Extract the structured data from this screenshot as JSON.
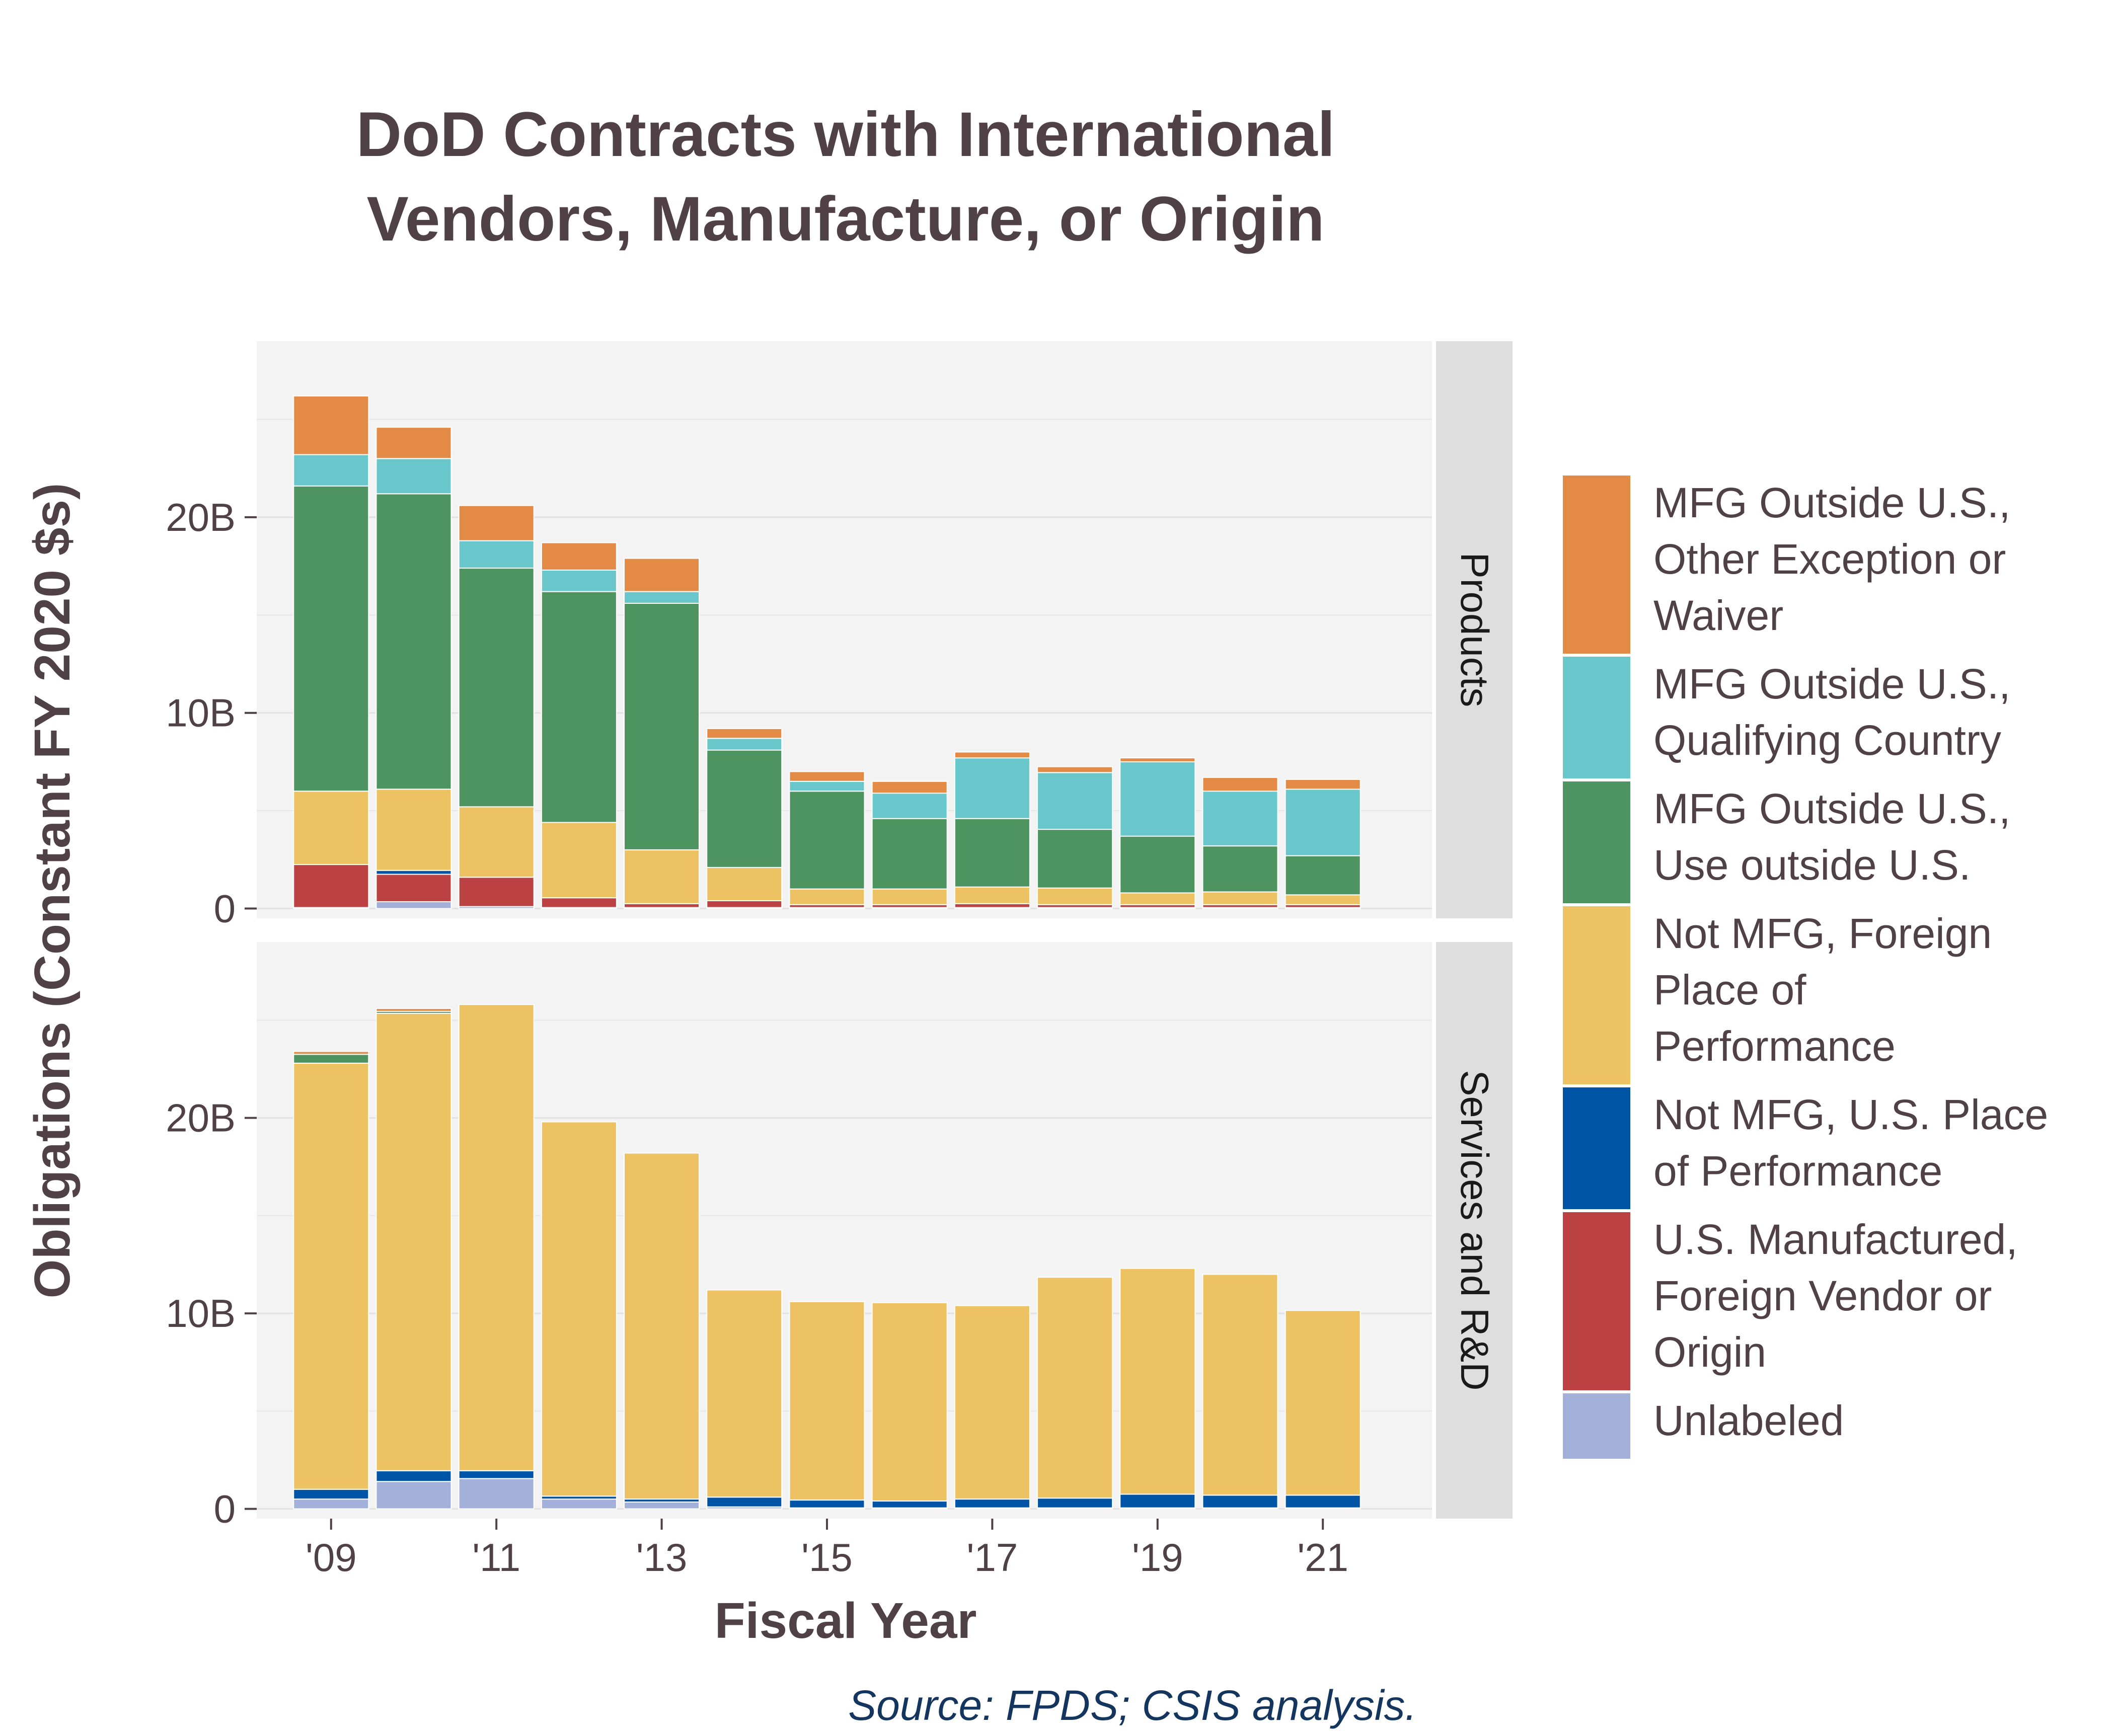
{
  "chart_data": {
    "type": "bar",
    "stacked": true,
    "title": "DoD Contracts with International Vendors, Manufacture, or Origin",
    "title_lines": [
      "DoD Contracts with International",
      "Vendors, Manufacture, or Origin"
    ],
    "xlabel": "Fiscal Year",
    "ylabel": "Obligations (Constant FY 2020 $s)",
    "source": "Source: FPDS; CSIS analysis.",
    "x": [
      2009,
      2010,
      2011,
      2012,
      2013,
      2014,
      2015,
      2016,
      2017,
      2018,
      2019,
      2020,
      2021
    ],
    "x_ticks": [
      2009,
      2011,
      2013,
      2015,
      2017,
      2019,
      2021
    ],
    "x_tick_labels": [
      "'09",
      "'11",
      "'13",
      "'15",
      "'17",
      "'19",
      "'21"
    ],
    "y_ticks": [
      0,
      10,
      20
    ],
    "y_tick_labels": [
      "0",
      "10B",
      "20B"
    ],
    "y_unit": "billions",
    "ylim": [
      -0.5,
      29
    ],
    "grid": true,
    "legend_position": "right",
    "legend": [
      {
        "key": "mfg_other",
        "label": "MFG Outside U.S., Other Exception or Waiver",
        "lines": [
          "MFG Outside U.S.,",
          "Other Exception or",
          "Waiver"
        ],
        "color": "#e48a47"
      },
      {
        "key": "mfg_qual",
        "label": "MFG Outside U.S., Qualifying Country",
        "lines": [
          "MFG Outside U.S.,",
          "Qualifying Country"
        ],
        "color": "#69c6cb"
      },
      {
        "key": "mfg_use",
        "label": "MFG Outside U.S., Use outside U.S.",
        "lines": [
          "MFG Outside U.S.,",
          "Use outside U.S."
        ],
        "color": "#4d9461"
      },
      {
        "key": "notmfg_foreign",
        "label": "Not MFG, Foreign Place of Performance",
        "lines": [
          "Not MFG, Foreign",
          "Place of",
          "Performance"
        ],
        "color": "#ecc262"
      },
      {
        "key": "notmfg_us",
        "label": "Not MFG, U.S. Place of Performance",
        "lines": [
          "Not MFG, U.S. Place",
          "of Performance"
        ],
        "color": "#0054a6"
      },
      {
        "key": "us_mfg",
        "label": "U.S. Manufactured, Foreign Vendor or Origin",
        "lines": [
          "U.S. Manufactured,",
          "Foreign Vendor or",
          "Origin"
        ],
        "color": "#bb4143"
      },
      {
        "key": "unlabeled",
        "label": "Unlabeled",
        "lines": [
          "Unlabeled"
        ],
        "color": "#a3b0d9"
      }
    ],
    "panels": [
      {
        "name": "Products",
        "series": [
          {
            "key": "unlabeled",
            "values": [
              0.05,
              0.35,
              0.1,
              0.05,
              0.05,
              0.05,
              0.05,
              0.05,
              0.05,
              0.05,
              0.05,
              0.05,
              0.05
            ]
          },
          {
            "key": "us_mfg",
            "values": [
              2.2,
              1.4,
              1.5,
              0.5,
              0.2,
              0.35,
              0.15,
              0.15,
              0.2,
              0.15,
              0.15,
              0.15,
              0.15
            ]
          },
          {
            "key": "notmfg_us",
            "values": [
              0.0,
              0.2,
              0.0,
              0.0,
              0.0,
              0.0,
              0.0,
              0.0,
              0.0,
              0.0,
              0.0,
              0.0,
              0.0
            ]
          },
          {
            "key": "notmfg_foreign",
            "values": [
              3.75,
              4.15,
              3.6,
              3.85,
              2.75,
              1.7,
              0.8,
              0.8,
              0.85,
              0.85,
              0.6,
              0.65,
              0.5
            ]
          },
          {
            "key": "mfg_use",
            "values": [
              15.6,
              15.1,
              12.2,
              11.8,
              12.6,
              6.0,
              5.0,
              3.6,
              3.5,
              3.0,
              2.9,
              2.35,
              2.0
            ]
          },
          {
            "key": "mfg_qual",
            "values": [
              1.6,
              1.8,
              1.4,
              1.1,
              0.6,
              0.6,
              0.5,
              1.3,
              3.1,
              2.9,
              3.8,
              2.8,
              3.4
            ]
          },
          {
            "key": "mfg_other",
            "values": [
              3.0,
              1.6,
              1.8,
              1.4,
              1.7,
              0.5,
              0.5,
              0.6,
              0.3,
              0.3,
              0.2,
              0.7,
              0.5
            ]
          }
        ]
      },
      {
        "name": "Services and R&D",
        "series": [
          {
            "key": "unlabeled",
            "values": [
              0.5,
              1.4,
              1.55,
              0.5,
              0.35,
              0.1,
              0.05,
              0.05,
              0.05,
              0.05,
              0.05,
              0.05,
              0.05
            ]
          },
          {
            "key": "us_mfg",
            "values": [
              0.0,
              0.0,
              0.0,
              0.0,
              0.0,
              0.0,
              0.0,
              0.0,
              0.0,
              0.0,
              0.0,
              0.0,
              0.0
            ]
          },
          {
            "key": "notmfg_us",
            "values": [
              0.5,
              0.55,
              0.4,
              0.15,
              0.15,
              0.5,
              0.4,
              0.35,
              0.45,
              0.5,
              0.7,
              0.65,
              0.65
            ]
          },
          {
            "key": "notmfg_foreign",
            "values": [
              21.8,
              23.4,
              23.85,
              19.15,
              17.7,
              10.6,
              10.15,
              10.15,
              9.9,
              11.3,
              11.55,
              11.3,
              9.45
            ]
          },
          {
            "key": "mfg_use",
            "values": [
              0.45,
              0.1,
              0.0,
              0.0,
              0.0,
              0.0,
              0.0,
              0.0,
              0.0,
              0.0,
              0.0,
              0.0,
              0.0
            ]
          },
          {
            "key": "mfg_qual",
            "values": [
              0.0,
              0.0,
              0.0,
              0.0,
              0.0,
              0.0,
              0.0,
              0.0,
              0.0,
              0.0,
              0.0,
              0.0,
              0.0
            ]
          },
          {
            "key": "mfg_other",
            "values": [
              0.15,
              0.15,
              0.0,
              0.0,
              0.0,
              0.0,
              0.0,
              0.0,
              0.0,
              0.0,
              0.0,
              0.0,
              0.0
            ]
          }
        ]
      }
    ]
  }
}
